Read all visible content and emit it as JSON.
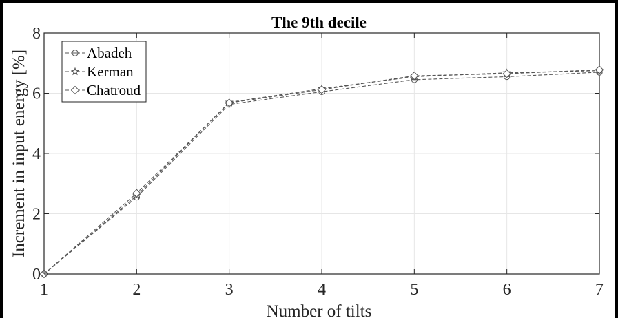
{
  "chart_data": {
    "type": "line",
    "title": "The 9th decile",
    "xlabel": "Number of tilts",
    "ylabel": "Increment in input energy [%]",
    "x": [
      1,
      2,
      3,
      4,
      5,
      6,
      7
    ],
    "xlim": [
      1,
      7
    ],
    "ylim": [
      0,
      8
    ],
    "xticks": [
      "1",
      "2",
      "3",
      "4",
      "5",
      "6",
      "7"
    ],
    "yticks": [
      "0",
      "2",
      "4",
      "6",
      "8"
    ],
    "grid": true,
    "legend_position": "top-left",
    "line_color": "#555555",
    "line_style": "dashed",
    "series": [
      {
        "name": "Abadeh",
        "marker": "circle",
        "values": [
          0,
          2.55,
          5.63,
          6.05,
          6.45,
          6.55,
          6.7
        ]
      },
      {
        "name": "Kerman",
        "marker": "star",
        "values": [
          0,
          2.6,
          5.7,
          6.15,
          6.55,
          6.68,
          6.75
        ]
      },
      {
        "name": "Chatroud",
        "marker": "diamond",
        "values": [
          0,
          2.68,
          5.68,
          6.12,
          6.58,
          6.65,
          6.78
        ]
      }
    ]
  }
}
